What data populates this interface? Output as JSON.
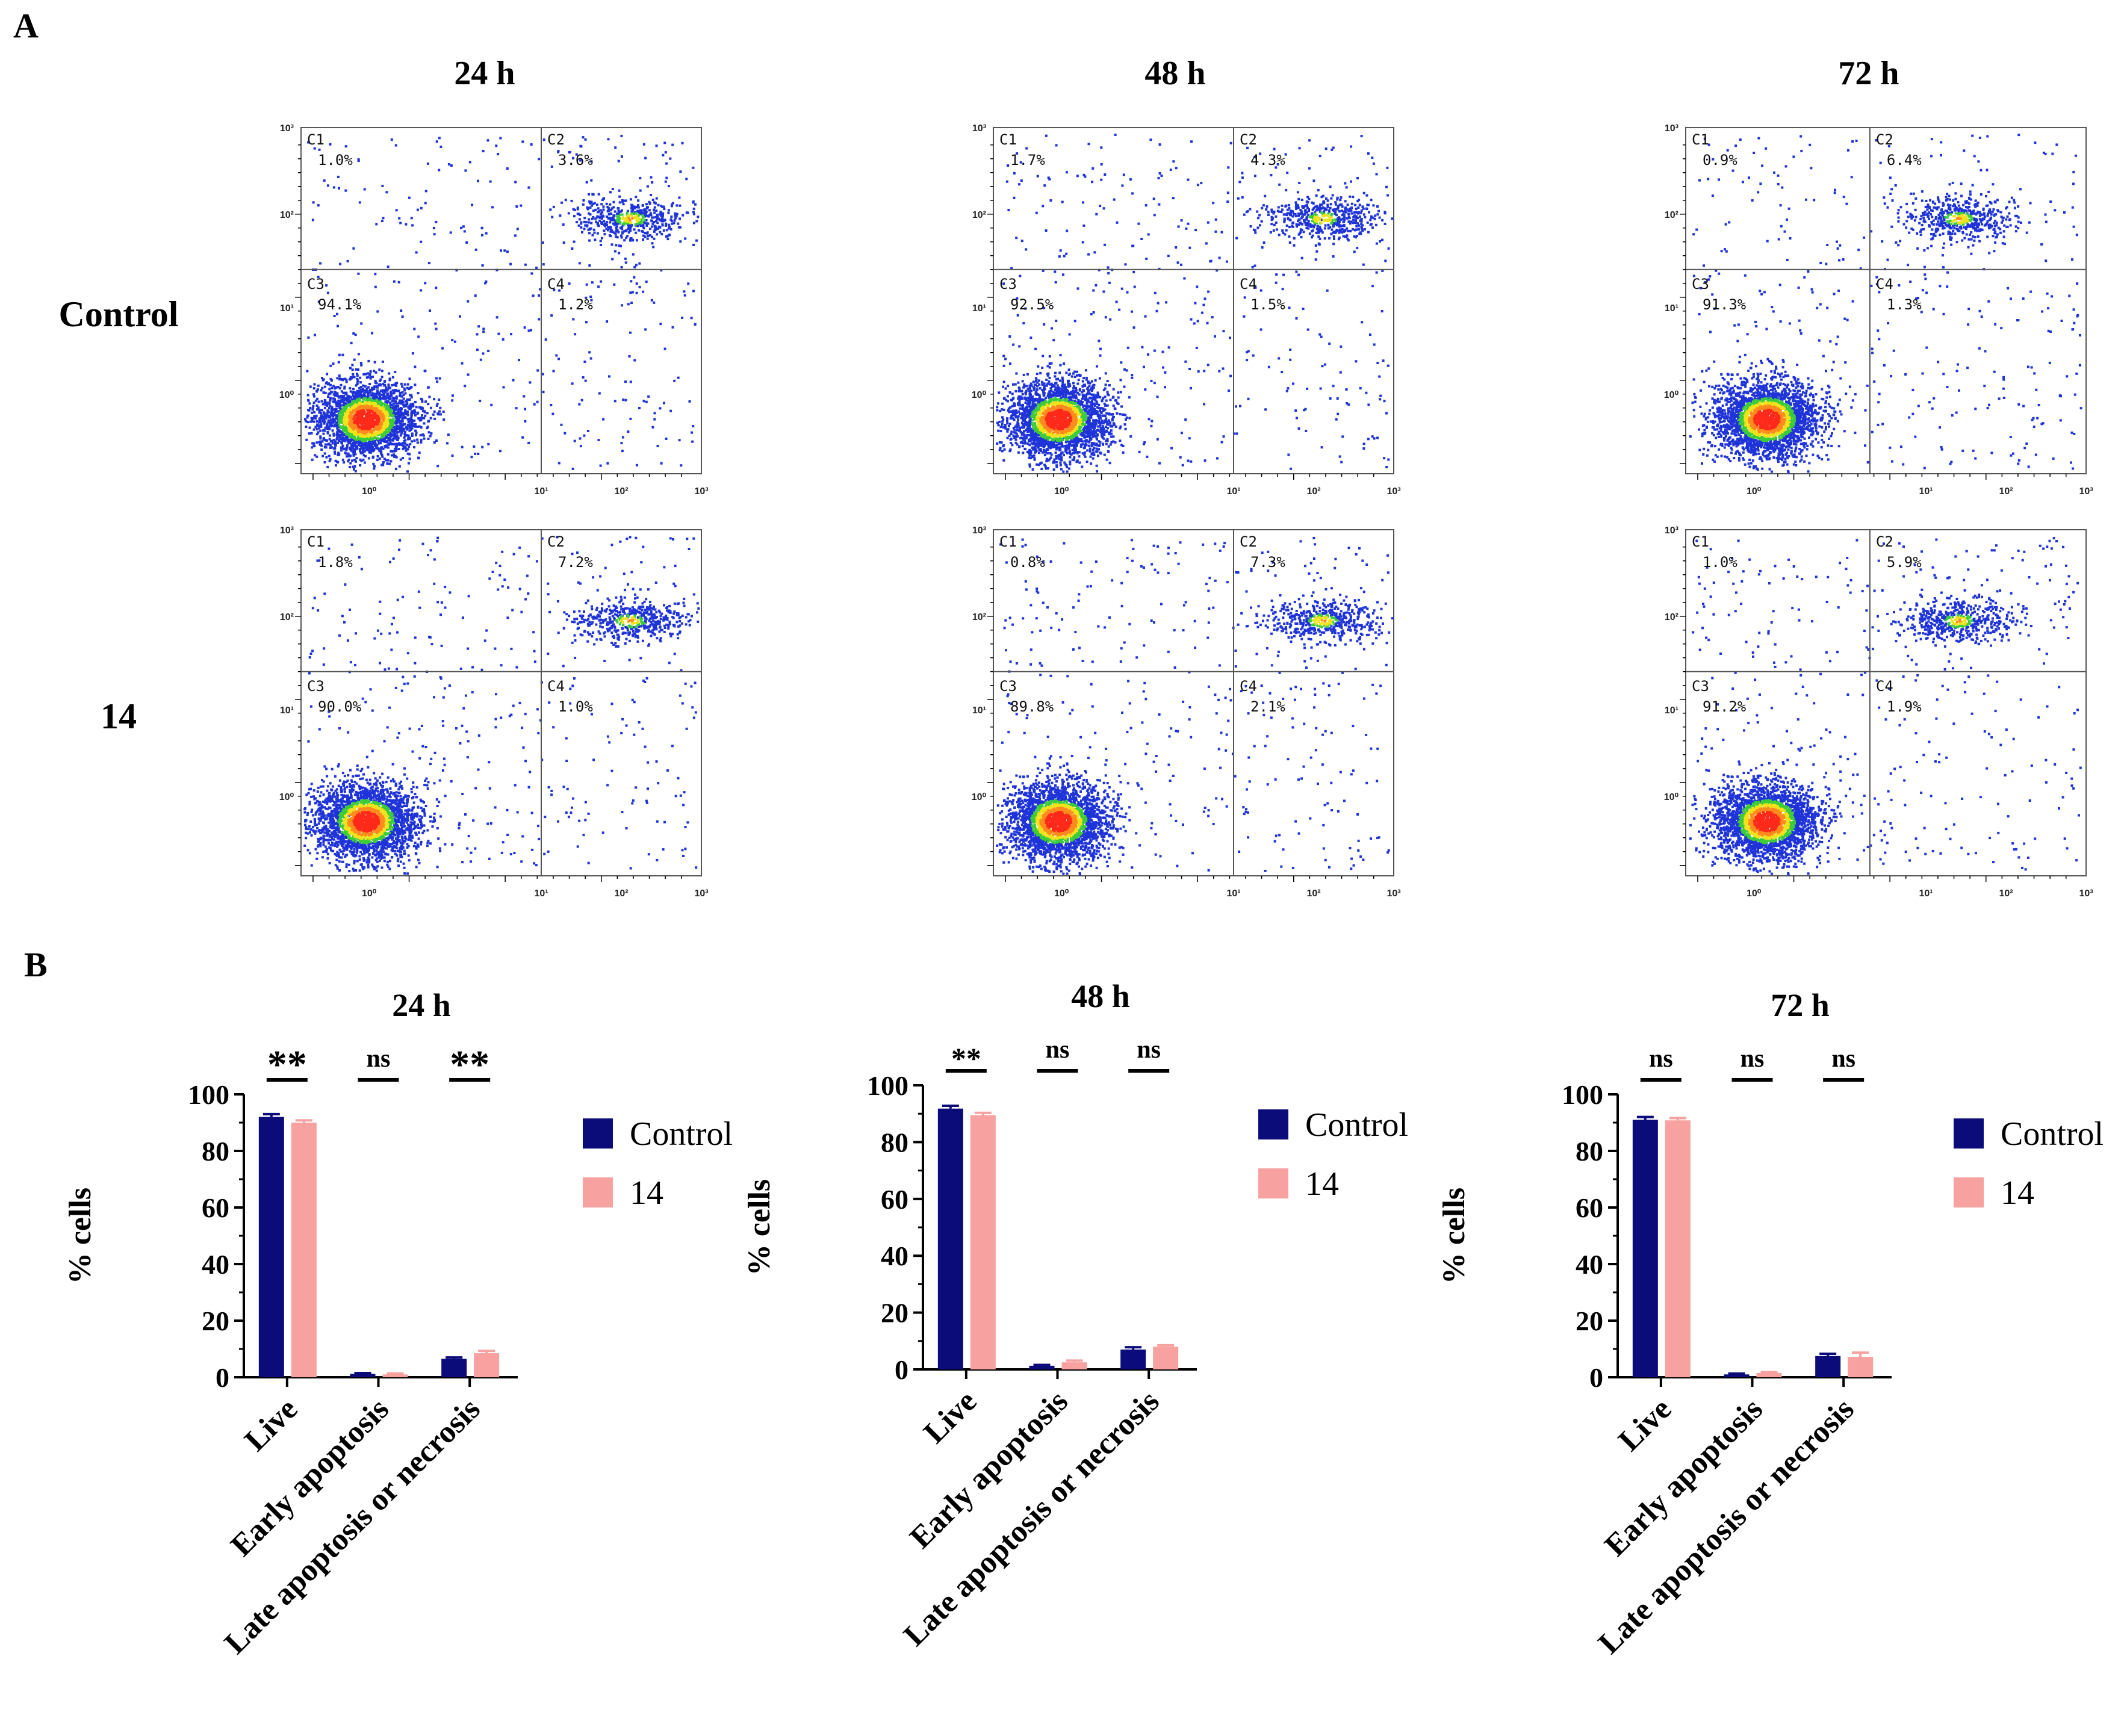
{
  "panel_a_label": "A",
  "panel_b_label": "B",
  "flow_columns": [
    "24 h",
    "48 h",
    "72 h"
  ],
  "flow_rows": [
    "Control",
    "14"
  ],
  "flow_quadrant_names": [
    "C1",
    "C2",
    "C3",
    "C4"
  ],
  "flow_axis_decades": [
    "10⁰",
    "10¹",
    "10²",
    "10³"
  ],
  "flow_percentages": [
    [
      [
        "1.0%",
        "3.6%",
        "94.1%",
        "1.2%"
      ],
      [
        "1.7%",
        "4.3%",
        "92.5%",
        "1.5%"
      ],
      [
        "0.9%",
        "6.4%",
        "91.3%",
        "1.3%"
      ]
    ],
    [
      [
        "1.8%",
        "7.2%",
        "90.0%",
        "1.0%"
      ],
      [
        "0.8%",
        "7.3%",
        "89.8%",
        "2.1%"
      ],
      [
        "1.0%",
        "5.9%",
        "91.2%",
        "1.9%"
      ]
    ]
  ],
  "colors": {
    "control": "#0b0b7a",
    "treated": "#f7a1a1",
    "dot_blue": "#1e33d8",
    "dot_green": "#3ccc3a",
    "dot_yellow": "#f2e21c",
    "dot_orange": "#ff8a1e",
    "dot_red": "#ff2a1a",
    "axis": "#000000",
    "gate": "#555555"
  },
  "chart_data": [
    {
      "type": "bar",
      "title": "24 h",
      "ylabel": "% cells",
      "xlabel": "",
      "ylim": [
        0,
        100
      ],
      "yticks": [
        0,
        20,
        40,
        60,
        80,
        100
      ],
      "categories": [
        "Live",
        "Early apoptosis",
        "Late apoptosis or necrosis"
      ],
      "series": [
        {
          "name": "Control",
          "values": [
            92.0,
            1.2,
            6.5
          ],
          "errors": [
            1.0,
            0.3,
            0.5
          ]
        },
        {
          "name": "14",
          "values": [
            90.0,
            1.0,
            8.5
          ],
          "errors": [
            0.8,
            0.3,
            0.8
          ]
        }
      ],
      "significance": [
        "**",
        "ns",
        "**"
      ],
      "legend": "right"
    },
    {
      "type": "bar",
      "title": "48 h",
      "ylabel": "% cells",
      "xlabel": "",
      "ylim": [
        0,
        100
      ],
      "yticks": [
        0,
        20,
        40,
        60,
        80,
        100
      ],
      "categories": [
        "Live",
        "Early apoptosis",
        "Late apoptosis or necrosis"
      ],
      "series": [
        {
          "name": "Control",
          "values": [
            91.8,
            1.3,
            7.0
          ],
          "errors": [
            1.0,
            0.3,
            0.8
          ]
        },
        {
          "name": "14",
          "values": [
            89.5,
            2.5,
            8.0
          ],
          "errors": [
            0.8,
            0.6,
            0.5
          ]
        }
      ],
      "significance": [
        "**",
        "ns",
        "ns"
      ],
      "legend": "right"
    },
    {
      "type": "bar",
      "title": "72 h",
      "ylabel": "% cells",
      "xlabel": "",
      "ylim": [
        0,
        100
      ],
      "yticks": [
        0,
        20,
        40,
        60,
        80,
        100
      ],
      "categories": [
        "Live",
        "Early apoptosis",
        "Late apoptosis or necrosis"
      ],
      "series": [
        {
          "name": "Control",
          "values": [
            91.0,
            1.0,
            7.5
          ],
          "errors": [
            1.0,
            0.3,
            0.8
          ]
        },
        {
          "name": "14",
          "values": [
            90.8,
            1.5,
            7.2
          ],
          "errors": [
            0.8,
            0.3,
            1.5
          ]
        }
      ],
      "significance": [
        "ns",
        "ns",
        "ns"
      ],
      "legend": "right"
    }
  ]
}
